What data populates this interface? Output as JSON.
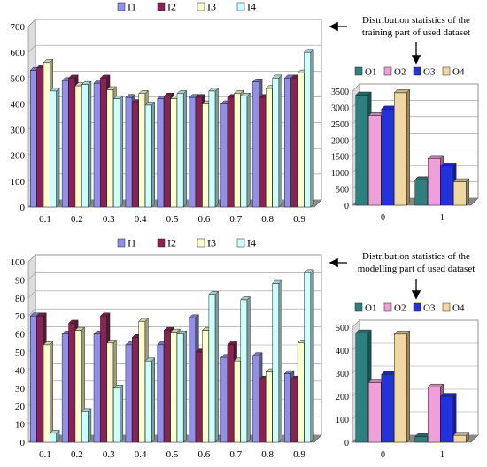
{
  "annotations": {
    "top_line1": "Distribution statistics of the",
    "top_line2": "training part of used dataset",
    "bottom_line1": "Distribution statistics of the",
    "bottom_line2": "modelling part of used dataset"
  },
  "colors": {
    "I1": "#9090e8",
    "I2": "#8b2252",
    "I3": "#ffffcc",
    "I4": "#ccffff",
    "O1": "#2e7f7f",
    "O2": "#f0a0d8",
    "O3": "#2233dd",
    "O4": "#f0d8a0"
  },
  "chart_data": [
    {
      "id": "training_inputs",
      "type": "bar",
      "categories": [
        "0.1",
        "0.2",
        "0.3",
        "0.4",
        "0.5",
        "0.6",
        "0.7",
        "0.8",
        "0.9"
      ],
      "ylim": [
        0,
        700
      ],
      "yticks": [
        0,
        100,
        200,
        300,
        400,
        500,
        600,
        700
      ],
      "grid": true,
      "legend": "top",
      "series": [
        {
          "name": "I1",
          "values": [
            530,
            490,
            480,
            425,
            420,
            425,
            400,
            485,
            500
          ]
        },
        {
          "name": "I2",
          "values": [
            540,
            500,
            500,
            405,
            430,
            425,
            425,
            425,
            500
          ]
        },
        {
          "name": "I3",
          "values": [
            560,
            470,
            455,
            440,
            420,
            400,
            440,
            460,
            520
          ]
        },
        {
          "name": "I4",
          "values": [
            450,
            475,
            420,
            395,
            440,
            450,
            430,
            500,
            600
          ]
        }
      ]
    },
    {
      "id": "training_outputs",
      "type": "bar",
      "categories": [
        "0",
        "1"
      ],
      "ylim": [
        0,
        3500
      ],
      "yticks": [
        0,
        500,
        1000,
        1500,
        2000,
        2500,
        3000,
        3500
      ],
      "grid": true,
      "legend": "top",
      "series": [
        {
          "name": "O1",
          "values": [
            3380,
            780
          ]
        },
        {
          "name": "O2",
          "values": [
            2750,
            1430
          ]
        },
        {
          "name": "O3",
          "values": [
            2950,
            1200
          ]
        },
        {
          "name": "O4",
          "values": [
            3450,
            720
          ]
        }
      ]
    },
    {
      "id": "modelling_inputs",
      "type": "bar",
      "categories": [
        "0.1",
        "0.2",
        "0.3",
        "0.4",
        "0.5",
        "0.6",
        "0.7",
        "0.8",
        "0.9"
      ],
      "ylim": [
        0,
        100
      ],
      "yticks": [
        0,
        10,
        20,
        30,
        40,
        50,
        60,
        70,
        80,
        90,
        100
      ],
      "grid": true,
      "legend": "top",
      "series": [
        {
          "name": "I1",
          "values": [
            70,
            60,
            60,
            54,
            54,
            69,
            47,
            48,
            38
          ]
        },
        {
          "name": "I2",
          "values": [
            70,
            66,
            70,
            58,
            62,
            50,
            54,
            35,
            35
          ]
        },
        {
          "name": "I3",
          "values": [
            54,
            62,
            55,
            67,
            61,
            62,
            45,
            39,
            55
          ]
        },
        {
          "name": "I4",
          "values": [
            5,
            17,
            30,
            45,
            60,
            82,
            79,
            88,
            94
          ]
        }
      ]
    },
    {
      "id": "modelling_outputs",
      "type": "bar",
      "categories": [
        "0",
        "1"
      ],
      "ylim": [
        0,
        500
      ],
      "yticks": [
        0,
        100,
        200,
        300,
        400,
        500
      ],
      "grid": true,
      "legend": "top",
      "series": [
        {
          "name": "O1",
          "values": [
            475,
            25
          ]
        },
        {
          "name": "O2",
          "values": [
            260,
            240
          ]
        },
        {
          "name": "O3",
          "values": [
            295,
            200
          ]
        },
        {
          "name": "O4",
          "values": [
            470,
            30
          ]
        }
      ]
    }
  ]
}
